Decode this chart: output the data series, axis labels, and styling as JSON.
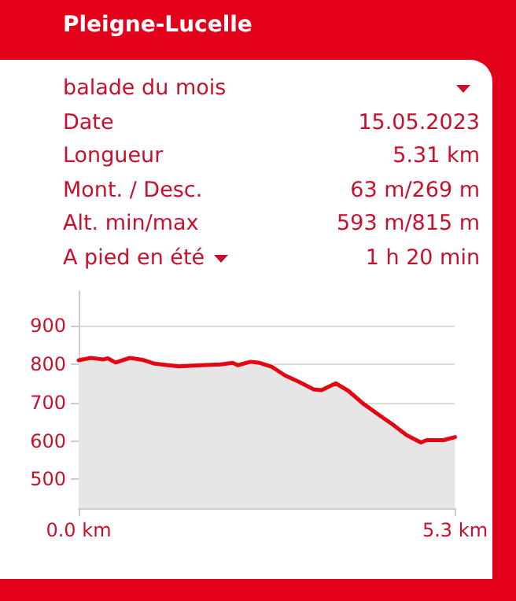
{
  "chart_data": [
    {
      "type": "other",
      "title": "Pleigne-Lucelle",
      "annotations": [
        "balade du mois",
        "Date",
        "15.05.2023",
        "Longueur",
        "5.31 km",
        "Mont. / Desc.",
        "63 m/269 m",
        "Alt. min/max",
        "593 m/815 m",
        "A pied en été",
        "1 h 20 min"
      ]
    },
    {
      "type": "area",
      "x": [
        0,
        0.17,
        0.35,
        0.41,
        0.52,
        0.72,
        0.9,
        1.07,
        1.41,
        1.73,
        2.0,
        2.17,
        2.24,
        2.42,
        2.55,
        2.73,
        2.9,
        3.11,
        3.31,
        3.42,
        3.62,
        3.8,
        4.0,
        4.21,
        4.42,
        4.62,
        4.82,
        4.9,
        5.14,
        5.3
      ],
      "series": [
        {
          "color": "#e30613",
          "values": [
            810,
            816,
            812,
            815,
            804,
            816,
            811,
            801,
            794,
            797,
            799,
            803,
            797,
            806,
            803,
            792,
            771,
            753,
            734,
            732,
            750,
            730,
            698,
            670,
            643,
            615,
            596,
            602,
            602,
            610
          ]
        }
      ],
      "xlim": [
        0,
        5.3
      ],
      "xticks": [
        {
          "value": 0,
          "label": "0.0 km"
        },
        {
          "value": 5.3,
          "label": "5.3 km"
        }
      ],
      "ylim": [
        425,
        990
      ],
      "yticks": [
        500,
        600,
        700,
        800,
        900
      ],
      "grid": "y",
      "marker": "none",
      "line_style": "solid"
    }
  ]
}
